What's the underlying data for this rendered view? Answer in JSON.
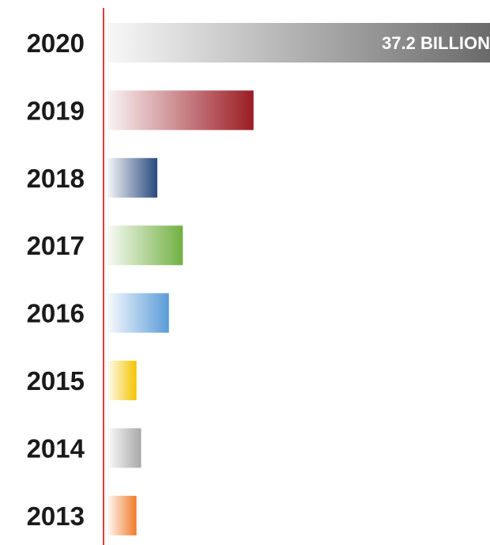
{
  "chart_data": {
    "type": "bar",
    "orientation": "horizontal",
    "categories": [
      "2020",
      "2019",
      "2018",
      "2017",
      "2016",
      "2015",
      "2014",
      "2013"
    ],
    "values": [
      37.2,
      12.6,
      4.3,
      6.5,
      5.3,
      2.5,
      2.9,
      2.5
    ],
    "data_labels": [
      "37.2 BILLION",
      "",
      "",
      "",
      "",
      "",
      "",
      ""
    ],
    "title": "",
    "xlabel": "",
    "ylabel": "",
    "xlim": [
      0,
      33.0
    ],
    "grid": false,
    "legend": "none",
    "axis_color": "#e03a3e",
    "bar_colors": [
      "#6a6a6a",
      "#9b1c24",
      "#27497e",
      "#72b042",
      "#5a9bd8",
      "#f5c400",
      "#a8a8a8",
      "#f07a28"
    ]
  }
}
